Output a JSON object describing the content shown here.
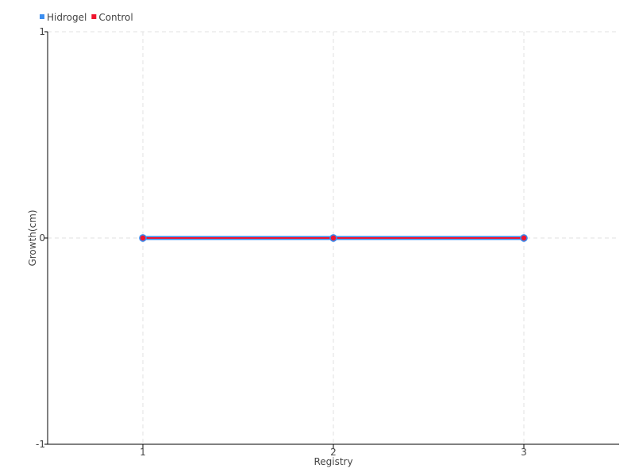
{
  "chart_data": {
    "type": "line",
    "xlabel": "Registry",
    "ylabel": "Growth(cm)",
    "categories": [
      "1",
      "2",
      "3"
    ],
    "ylim": [
      -1,
      1
    ],
    "yticks": [
      "1",
      "0",
      "-1"
    ],
    "grid": true,
    "legend_position": "top-left",
    "series": [
      {
        "name": "Hidrogel",
        "color": "#3b8ef0",
        "values": [
          0,
          0,
          0
        ]
      },
      {
        "name": "Control",
        "color": "#f0142d",
        "values": [
          0,
          0,
          0
        ]
      }
    ]
  }
}
